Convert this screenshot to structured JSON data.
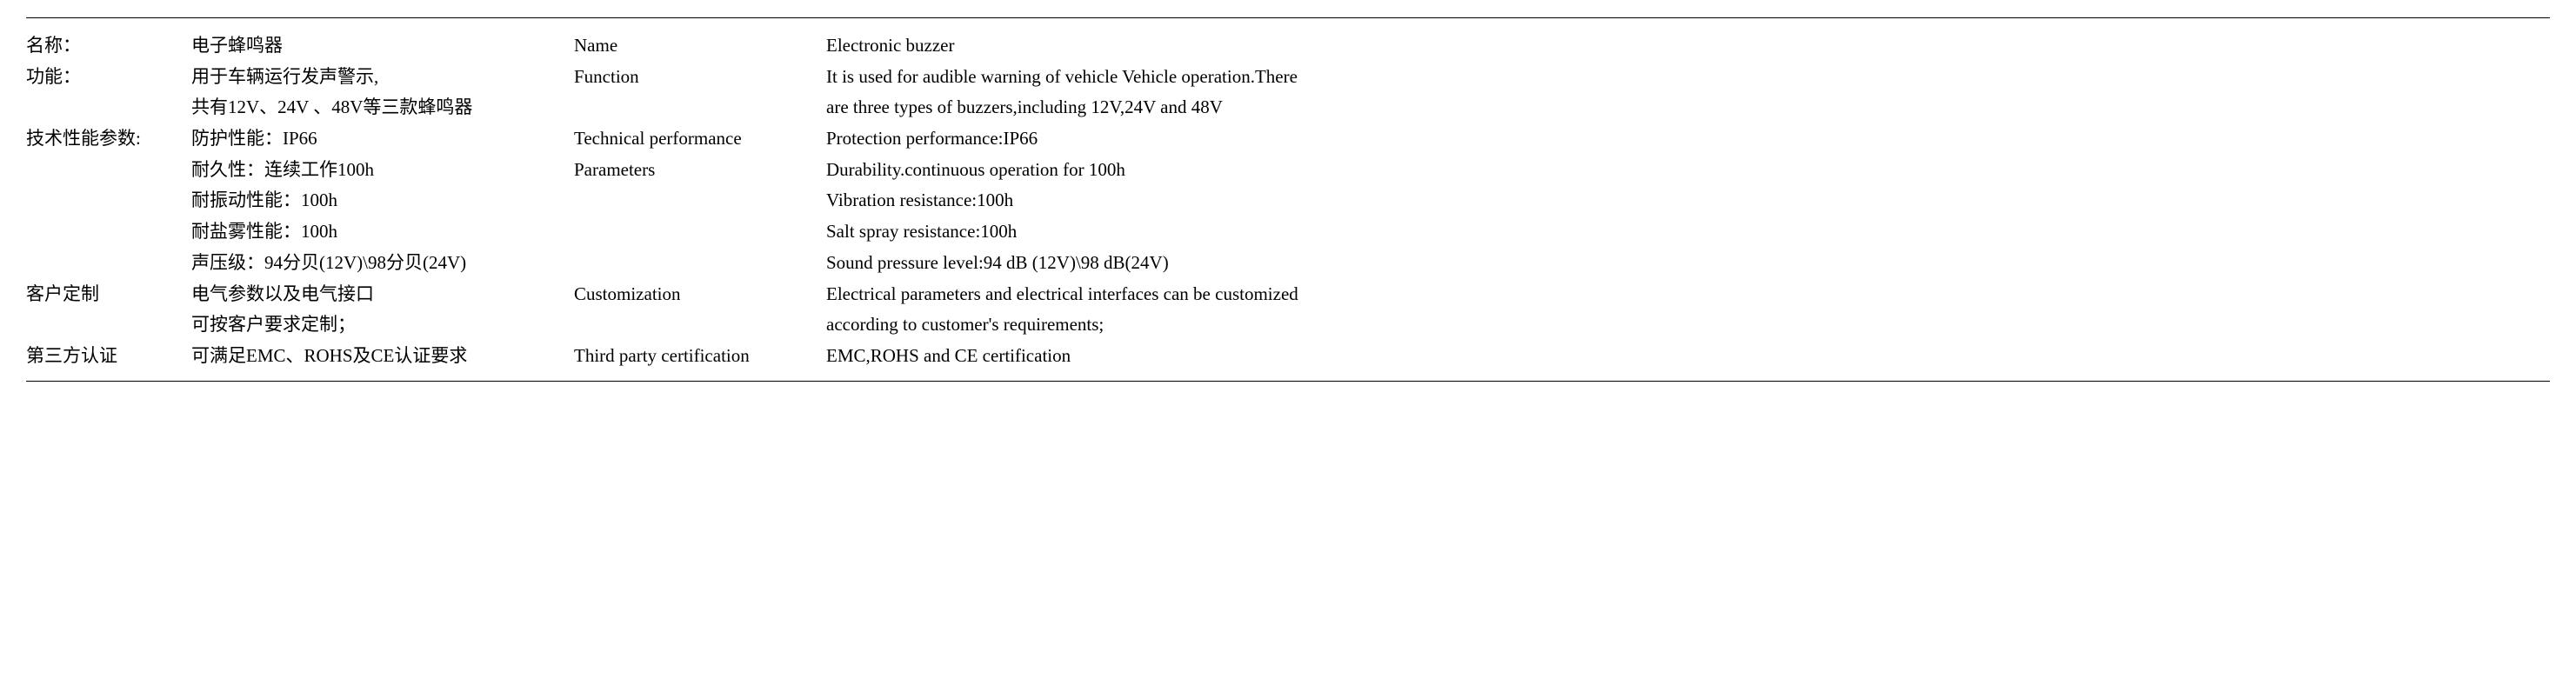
{
  "chinese": {
    "name_label": "名称：",
    "name_value": "电子蜂鸣器",
    "function_label": "功能：",
    "function_value_1": "用于车辆运行发声警示,",
    "function_value_2": "共有12V、24V 、48V等三款蜂鸣器",
    "tech_label": "技术性能参数:",
    "tech_1": "防护性能：IP66",
    "tech_2": "耐久性：连续工作100h",
    "tech_3": "耐振动性能：100h",
    "tech_4": "耐盐雾性能：100h",
    "tech_5": "声压级：94分贝(12V)\\98分贝(24V)",
    "custom_label": "客户定制",
    "custom_value_1": "电气参数以及电气接口",
    "custom_value_2": "可按客户要求定制；",
    "cert_label": "第三方认证",
    "cert_value": "可满足EMC、ROHS及CE认证要求"
  },
  "english": {
    "name_label": "Name",
    "name_value": "Electronic buzzer",
    "function_label": "Function",
    "function_value_1": "It is used for audible warning of vehicle Vehicle operation.There",
    "function_value_2": "are three types of buzzers,including 12V,24V and 48V",
    "tech_label_1": "Technical performance",
    "tech_label_2": "Parameters",
    "tech_1": "Protection  performance:IP66",
    "tech_2": "Durability.continuous operation for 100h",
    "tech_3": "Vibration resistance:100h",
    "tech_4": "Salt spray resistance:100h",
    "tech_5": "Sound pressure level:94 dB (12V)\\98 dB(24V)",
    "custom_label": "Customization",
    "custom_value_1": "Electrical parameters and electrical interfaces can be customized",
    "custom_value_2": "according to customer's requirements;",
    "cert_label": "Third party certification",
    "cert_value": "EMC,ROHS and CE certification"
  }
}
